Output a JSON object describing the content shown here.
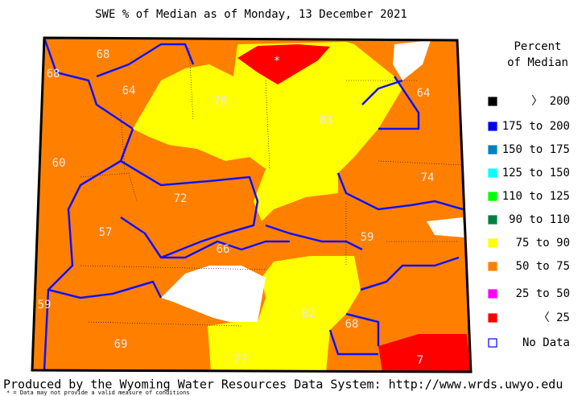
{
  "title": "SWE % of Median as of Monday, 13 December 2021",
  "legend": {
    "title_lines": [
      "Percent",
      "of Median"
    ],
    "items": [
      {
        "label": "〉 200",
        "color": "#000000"
      },
      {
        "label": "175 to 200",
        "color": "#0000ff"
      },
      {
        "label": "150 to 175",
        "color": "#0080c0"
      },
      {
        "label": "125 to 150",
        "color": "#00ffff"
      },
      {
        "label": "110 to 125",
        "color": "#00ff00"
      },
      {
        "label": "90 to 110",
        "color": "#008040"
      },
      {
        "label": "75 to 90",
        "color": "#ffff00"
      },
      {
        "label": "50 to 75",
        "color": "#ff8000"
      },
      {
        "label": "25 to 50",
        "color": "#ff00ff"
      },
      {
        "label": "〈 25",
        "color": "#ff0000"
      },
      {
        "label": "No Data",
        "color": "#ffffff"
      }
    ]
  },
  "basins": [
    {
      "value": 68
    },
    {
      "value": 68
    },
    {
      "value": 64
    },
    {
      "value": 78
    },
    {
      "label": "*"
    },
    {
      "value": 83
    },
    {
      "value": 64
    },
    {
      "value": 60
    },
    {
      "value": 72
    },
    {
      "value": 74
    },
    {
      "value": 57
    },
    {
      "value": 59
    },
    {
      "value": 66
    },
    {
      "value": 59
    },
    {
      "value": 82
    },
    {
      "value": 68
    },
    {
      "value": 69
    },
    {
      "value": 77
    },
    {
      "value": 7
    }
  ],
  "footer": "Produced by the Wyoming Water Resources Data System: http://www.wrds.uwyo.edu",
  "footnote": "* = Data may not provide a valid measure of conditions"
}
